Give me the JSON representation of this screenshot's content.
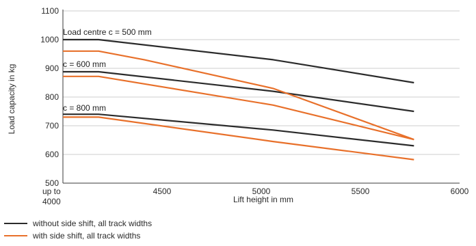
{
  "chart_data": {
    "type": "line",
    "xlabel": "Lift height in mm",
    "ylabel": "Load capacity in kg",
    "xlim": [
      4000,
      6000
    ],
    "ylim": [
      500,
      1100
    ],
    "x_ticks": [
      {
        "value": 4000,
        "label": "up to\n4000"
      },
      {
        "value": 4500,
        "label": "4500"
      },
      {
        "value": 5000,
        "label": "5000"
      },
      {
        "value": 5500,
        "label": "5500"
      },
      {
        "value": 6000,
        "label": "6000"
      }
    ],
    "y_ticks": [
      500,
      600,
      700,
      800,
      900,
      1000,
      1100
    ],
    "grid": "horizontal",
    "annotations": [
      {
        "text": "Load centre c = 500 mm",
        "x": 4000,
        "y": 1017
      },
      {
        "text": "c = 600 mm",
        "x": 4000,
        "y": 905
      },
      {
        "text": "c = 800 mm",
        "x": 4000,
        "y": 752
      }
    ],
    "series": [
      {
        "name": "without side shift, all track widths",
        "color": "#2b2b2b",
        "curve": "c = 500 mm",
        "x": [
          4000,
          4180,
          5060,
          5770
        ],
        "y": [
          1000,
          1000,
          930,
          850
        ]
      },
      {
        "name": "without side shift, all track widths",
        "color": "#2b2b2b",
        "curve": "c = 600 mm",
        "x": [
          4000,
          4180,
          5060,
          5770
        ],
        "y": [
          888,
          888,
          820,
          750
        ]
      },
      {
        "name": "without side shift, all track widths",
        "color": "#2b2b2b",
        "curve": "c = 800 mm",
        "x": [
          4000,
          4180,
          5060,
          5770
        ],
        "y": [
          740,
          740,
          685,
          630
        ]
      },
      {
        "name": "with side shift, all track widths",
        "color": "#e8702a",
        "curve": "c = 500 mm",
        "x": [
          4000,
          4180,
          4410,
          5060,
          5770
        ],
        "y": [
          960,
          960,
          930,
          830,
          652
        ]
      },
      {
        "name": "with side shift, all track widths",
        "color": "#e8702a",
        "curve": "c = 600 mm",
        "x": [
          4000,
          4180,
          5060,
          5770
        ],
        "y": [
          872,
          872,
          772,
          652
        ]
      },
      {
        "name": "with side shift, all track widths",
        "color": "#e8702a",
        "curve": "c = 800 mm",
        "x": [
          4000,
          4180,
          5060,
          5770
        ],
        "y": [
          730,
          730,
          645,
          582
        ]
      }
    ],
    "legend": {
      "placement": "bottom-left",
      "entries": [
        {
          "label": "without side shift, all track widths",
          "color": "#2b2b2b"
        },
        {
          "label": "with side shift, all track widths",
          "color": "#e8702a"
        }
      ]
    },
    "colors": {
      "grid": "#bdbdbd",
      "axis": "#3a3a3a"
    }
  }
}
